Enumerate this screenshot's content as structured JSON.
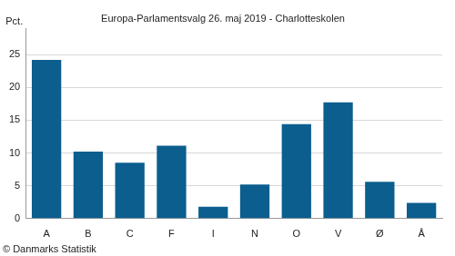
{
  "chart_data": {
    "type": "bar",
    "title": "Europa-Parlamentsvalg 26. maj 2019 - Charlotteskolen",
    "y_label": "Pct.",
    "source": "© Danmarks Statistik",
    "categories": [
      "A",
      "B",
      "C",
      "F",
      "I",
      "N",
      "O",
      "V",
      "Ø",
      "Å"
    ],
    "values": [
      24.2,
      10.2,
      8.5,
      11.1,
      1.8,
      5.2,
      14.4,
      17.7,
      5.6,
      2.4
    ],
    "color": "#0b5e8e",
    "ylim": [
      0,
      29
    ],
    "yticks": [
      0,
      5,
      10,
      15,
      20,
      25
    ],
    "grid": true
  }
}
